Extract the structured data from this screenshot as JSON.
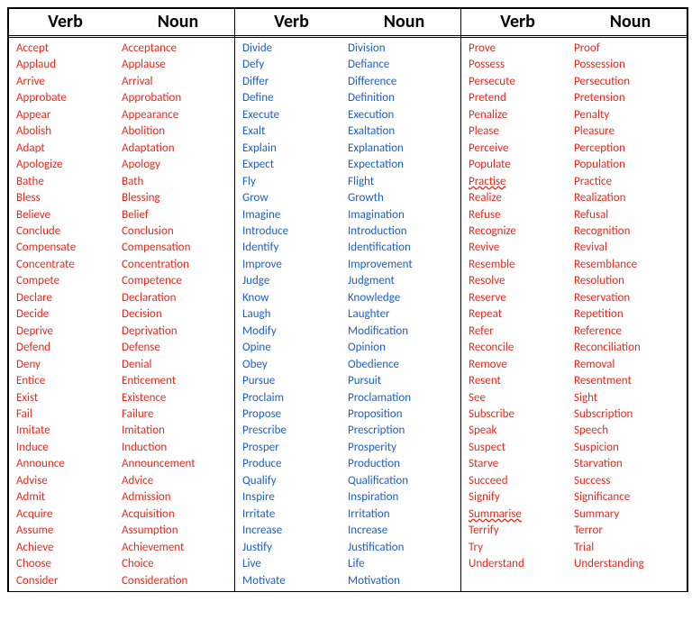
{
  "colors": {
    "red": "#e22b1f",
    "blue": "#1f5fbf",
    "black": "#000000",
    "bg": "#ffffff"
  },
  "header_fontsize": 20,
  "body_fontsize": 13,
  "columns": [
    "Verb",
    "Noun"
  ],
  "panels": [
    {
      "color": "c-red",
      "rows": [
        [
          "Accept",
          "Acceptance"
        ],
        [
          "Applaud",
          "Applause"
        ],
        [
          "Arrive",
          "Arrival"
        ],
        [
          "Approbate",
          "Approbation"
        ],
        [
          "Appear",
          "Appearance"
        ],
        [
          "Abolish",
          "Abolition"
        ],
        [
          "Adapt",
          "Adaptation"
        ],
        [
          "Apologize",
          "Apology"
        ],
        [
          "Bathe",
          "Bath"
        ],
        [
          "Bless",
          "Blessing"
        ],
        [
          "Believe",
          "Belief"
        ],
        [
          "Conclude",
          "Conclusion"
        ],
        [
          "Compensate",
          "Compensation"
        ],
        [
          "Concentrate",
          "Concentration"
        ],
        [
          "Compete",
          "Competence"
        ],
        [
          "Declare",
          "Declaration"
        ],
        [
          "Decide",
          "Decision"
        ],
        [
          "Deprive",
          "Deprivation"
        ],
        [
          "Defend",
          "Defense"
        ],
        [
          "Deny",
          "Denial"
        ],
        [
          "Entice",
          "Enticement"
        ],
        [
          "Exist",
          "Existence"
        ],
        [
          "Fail",
          "Failure"
        ],
        [
          "Imitate",
          "Imitation"
        ],
        [
          "Induce",
          "Induction"
        ],
        [
          "Announce",
          "Announcement"
        ],
        [
          "Advise",
          "Advice"
        ],
        [
          "Admit",
          "Admission"
        ],
        [
          "Acquire",
          "Acquisition"
        ],
        [
          "Assume",
          "Assumption"
        ],
        [
          "Achieve",
          "Achievement"
        ],
        [
          "Choose",
          "Choice"
        ],
        [
          "Consider",
          "Consideration"
        ]
      ]
    },
    {
      "color": "c-blue",
      "rows": [
        [
          "Divide",
          "Division"
        ],
        [
          "Defy",
          "Defiance"
        ],
        [
          "Differ",
          "Difference"
        ],
        [
          "Define",
          "Definition"
        ],
        [
          "Execute",
          "Execution"
        ],
        [
          "Exalt",
          "Exaltation"
        ],
        [
          "Explain",
          "Explanation"
        ],
        [
          "Expect",
          "Expectation"
        ],
        [
          "Fly",
          "Flight"
        ],
        [
          "Grow",
          "Growth"
        ],
        [
          "Imagine",
          "Imagination"
        ],
        [
          "Introduce",
          "Introduction"
        ],
        [
          "Identify",
          "Identification"
        ],
        [
          "Improve",
          "Improvement"
        ],
        [
          "Judge",
          "Judgment"
        ],
        [
          "Know",
          "Knowledge"
        ],
        [
          "Laugh",
          "Laughter"
        ],
        [
          "Modify",
          "Modification"
        ],
        [
          "Opine",
          "Opinion"
        ],
        [
          "Obey",
          "Obedience"
        ],
        [
          "Pursue",
          "Pursuit"
        ],
        [
          "Proclaim",
          "Proclamation"
        ],
        [
          "Propose",
          "Proposition"
        ],
        [
          "Prescribe",
          "Prescription"
        ],
        [
          "Prosper",
          "Prosperity"
        ],
        [
          "Produce",
          "Production"
        ],
        [
          "Qualify",
          "Qualification"
        ],
        [
          "Inspire",
          "Inspiration"
        ],
        [
          "Irritate",
          "Irritation"
        ],
        [
          "Increase",
          "Increase"
        ],
        [
          "Justify",
          "Justification"
        ],
        [
          "Live",
          "Life"
        ],
        [
          "Motivate",
          "Motivation"
        ]
      ]
    },
    {
      "color": "c-red",
      "squiggle_verbs": [
        "Practise",
        "Summarise"
      ],
      "rows": [
        [
          "Prove",
          "Proof"
        ],
        [
          "Possess",
          "Possession"
        ],
        [
          "Persecute",
          "Persecution"
        ],
        [
          "Pretend",
          "Pretension"
        ],
        [
          "Penalize",
          "Penalty"
        ],
        [
          "Please",
          "Pleasure"
        ],
        [
          "Perceive",
          "Perception"
        ],
        [
          "Populate",
          "Population"
        ],
        [
          "Practise",
          "Practice"
        ],
        [
          "Realize",
          "Realization"
        ],
        [
          "Refuse",
          "Refusal"
        ],
        [
          "Recognize",
          "Recognition"
        ],
        [
          "Revive",
          "Revival"
        ],
        [
          "Resemble",
          "Resemblance"
        ],
        [
          "Resolve",
          "Resolution"
        ],
        [
          "Reserve",
          "Reservation"
        ],
        [
          "Repeat",
          "Repetition"
        ],
        [
          "Refer",
          "Reference"
        ],
        [
          "Reconcile",
          "Reconciliation"
        ],
        [
          "Remove",
          "Removal"
        ],
        [
          "Resent",
          "Resentment"
        ],
        [
          "See",
          "Sight"
        ],
        [
          "Subscribe",
          "Subscription"
        ],
        [
          "Speak",
          "Speech"
        ],
        [
          "Suspect",
          "Suspicion"
        ],
        [
          "Starve",
          "Starvation"
        ],
        [
          "Succeed",
          "Success"
        ],
        [
          "Signify",
          "Significance"
        ],
        [
          "Summarise",
          "Summary"
        ],
        [
          "Terrify",
          "Terror"
        ],
        [
          "Try",
          "Trial"
        ],
        [
          "Understand",
          "Understanding"
        ]
      ]
    }
  ]
}
